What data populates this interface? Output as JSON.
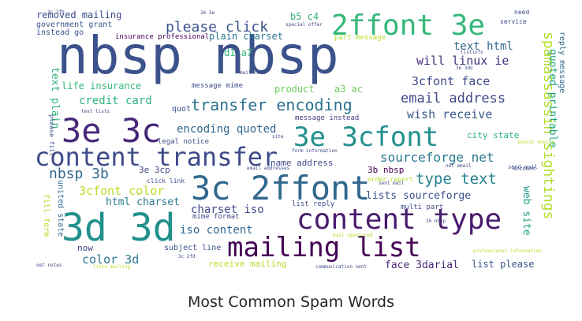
{
  "caption": "Most Common Spam Words",
  "words": [
    {
      "text": "nbsp nbsp",
      "color": "#3b528b"
    },
    {
      "text": "2ffont 3e",
      "color": "#35b779"
    },
    {
      "text": "3e 3c",
      "color": "#482878"
    },
    {
      "text": "3e 3cfont",
      "color": "#21918c"
    },
    {
      "text": "content transfer",
      "color": "#3e4a89"
    },
    {
      "text": "3c 2ffont",
      "color": "#31688e"
    },
    {
      "text": "content type",
      "color": "#481c6e"
    },
    {
      "text": "3d 3d",
      "color": "#21908d"
    },
    {
      "text": "mailing list",
      "color": "#440154"
    },
    {
      "text": "transfer encoding",
      "color": "#2c728e"
    },
    {
      "text": "spamassassin sightings",
      "color": "#b5de2b"
    },
    {
      "text": "please click",
      "color": "#3b528b"
    },
    {
      "text": "email address",
      "color": "#3e4a89"
    },
    {
      "text": "nbsp 3b",
      "color": "#31688e"
    },
    {
      "text": "type text",
      "color": "#26828e"
    },
    {
      "text": "sourceforge net",
      "color": "#2a788e"
    },
    {
      "text": "wish receive",
      "color": "#38598c"
    },
    {
      "text": "will linux ie",
      "color": "#46307e"
    },
    {
      "text": "3cfont face",
      "color": "#3e4a89"
    },
    {
      "text": "text html",
      "color": "#31688e"
    },
    {
      "text": "credit card",
      "color": "#2db27d"
    },
    {
      "text": "encoding quoted",
      "color": "#31688e"
    },
    {
      "text": "3cfont color",
      "color": "#b8de29"
    },
    {
      "text": "quoted printable",
      "color": "#21a685"
    },
    {
      "text": "web site",
      "color": "#1f9e89"
    },
    {
      "text": "lists sourceforge",
      "color": "#3b528b"
    },
    {
      "text": "html charset",
      "color": "#2a788e"
    },
    {
      "text": "charset iso",
      "color": "#3e4a89"
    },
    {
      "text": "iso content",
      "color": "#31688e"
    },
    {
      "text": "color 3d",
      "color": "#2a788e"
    },
    {
      "text": "face 3darial",
      "color": "#482878"
    },
    {
      "text": "list please",
      "color": "#3b528b"
    },
    {
      "text": "text plain",
      "color": "#2db27d"
    },
    {
      "text": "life insurance",
      "color": "#35b779"
    },
    {
      "text": "removed mailing",
      "color": "#3e4a89"
    },
    {
      "text": "government grant",
      "color": "#39568c"
    },
    {
      "text": "instead go",
      "color": "#3b528b"
    },
    {
      "text": "plain charset",
      "color": "#2a788e"
    },
    {
      "text": "d1 a7",
      "color": "#35b779"
    },
    {
      "text": "b5 c4",
      "color": "#35b779"
    },
    {
      "text": "product",
      "color": "#6ccd5a"
    },
    {
      "text": "a3 ac",
      "color": "#6ccd5a"
    },
    {
      "text": "city state",
      "color": "#2db27d"
    },
    {
      "text": "name address",
      "color": "#3e4a89"
    },
    {
      "text": "receive mailing",
      "color": "#b5de2b"
    },
    {
      "text": "subject line",
      "color": "#3b528b"
    },
    {
      "text": "fill form",
      "color": "#b5de2b"
    },
    {
      "text": "united state",
      "color": "#31688e"
    },
    {
      "text": "reply message",
      "color": "#31688e"
    },
    {
      "text": "3e 3cp",
      "color": "#3e4a89"
    },
    {
      "text": "3b nbsp",
      "color": "#440154"
    },
    {
      "text": "now",
      "color": "#3e4a89"
    },
    {
      "text": "message mime",
      "color": "#3e4a89"
    },
    {
      "text": "message instead",
      "color": "#443983"
    },
    {
      "text": "mime format",
      "color": "#3e4a89"
    },
    {
      "text": "quot",
      "color": "#3b528b"
    },
    {
      "text": "part message",
      "color": "#b5de2b"
    },
    {
      "text": "insurance professional",
      "color": "#440154"
    },
    {
      "text": "legal notice",
      "color": "#3e4a89"
    },
    {
      "text": "list reply",
      "color": "#3e4a89"
    },
    {
      "text": "multi part",
      "color": "#3e4a89"
    },
    {
      "text": "order report",
      "color": "#b5de2b"
    },
    {
      "text": "click link",
      "color": "#3e4a89"
    },
    {
      "text": "need",
      "color": "#3e4a89"
    },
    {
      "text": "service",
      "color": "#3e4a89"
    },
    {
      "text": "send mail",
      "color": "#3e4a89"
    },
    {
      "text": "account",
      "color": "#3e4a89"
    },
    {
      "text": "special offer",
      "color": "#3e4a89"
    },
    {
      "text": "sent mail",
      "color": "#3e4a89"
    },
    {
      "text": "form information",
      "color": "#3e4a89"
    },
    {
      "text": "net notes",
      "color": "#3e4a89"
    },
    {
      "text": "lists mailing",
      "color": "#b5de2b"
    },
    {
      "text": "3e 3do",
      "color": "#3e4a89"
    },
    {
      "text": "email addresses",
      "color": "#3e4a89"
    },
    {
      "text": "mail code",
      "color": "#3e4a89"
    },
    {
      "text": "text lists",
      "color": "#3e4a89"
    },
    {
      "text": "communication sent",
      "color": "#3e4a89"
    },
    {
      "text": "search engine",
      "color": "#b5de2b"
    },
    {
      "text": "net email",
      "color": "#3e4a89"
    },
    {
      "text": "site",
      "color": "#3e4a89"
    },
    {
      "text": "26 3e",
      "color": "#3e4a89"
    },
    {
      "text": "3c 2fb",
      "color": "#3e4a89"
    },
    {
      "text": "mail sponsored",
      "color": "#b5de2b"
    },
    {
      "text": "professional information",
      "color": "#b5de2b"
    },
    {
      "text": "please fill",
      "color": "#3e4a89"
    },
    {
      "text": "26 nbsp",
      "color": "#3e4a89"
    },
    {
      "text": "3c 2fd",
      "color": "#3e4a89"
    },
    {
      "text": "listinfo",
      "color": "#3e4a89"
    }
  ]
}
